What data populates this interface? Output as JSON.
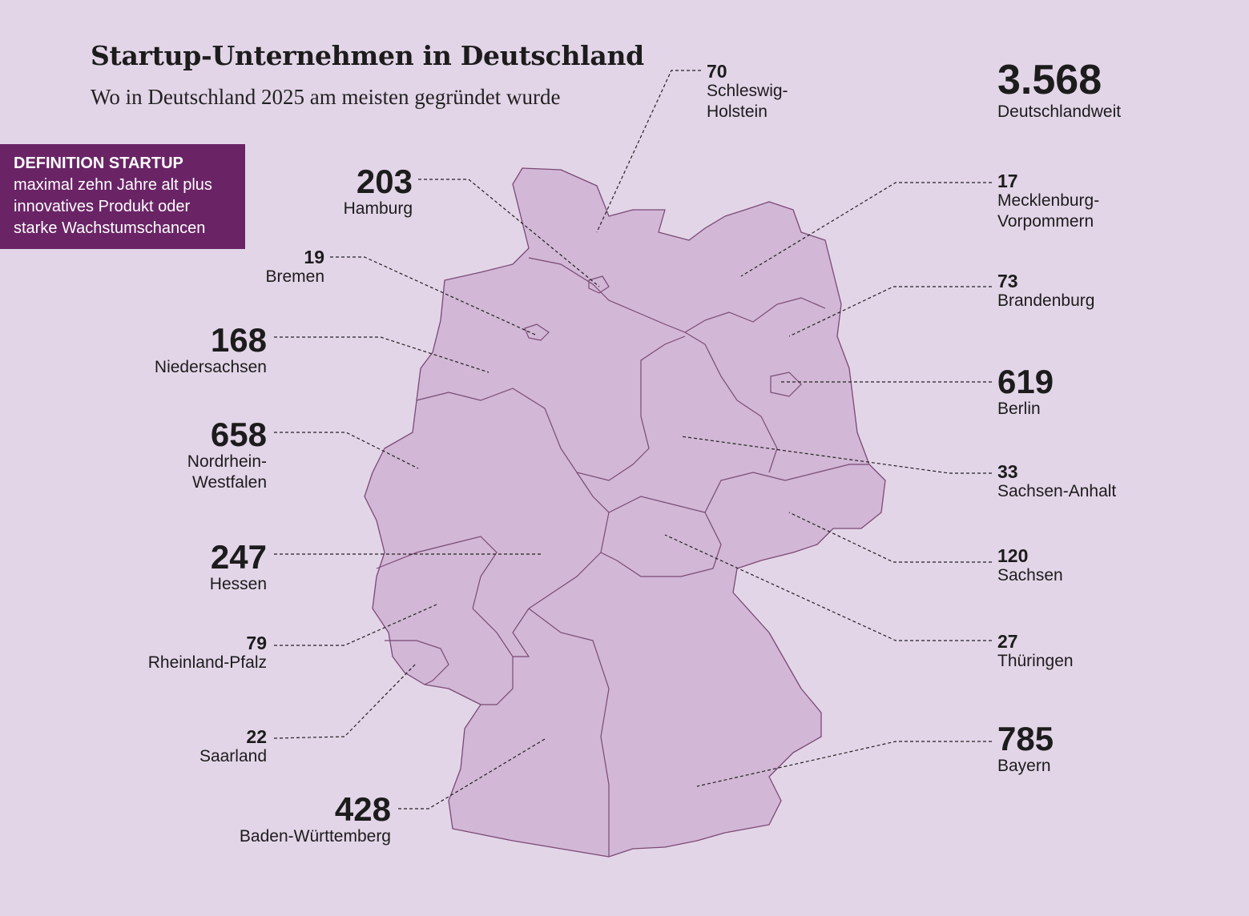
{
  "title": "Startup-Unternehmen in Deutschland",
  "subtitle": "Wo in Deutschland 2025 am meisten gegründet wurde",
  "total": {
    "value": "3.568",
    "label": "Deutschlandweit"
  },
  "definition": {
    "heading": "DEFINITION STARTUP",
    "lines": [
      "maximal zehn Jahre alt plus",
      "innovatives Produkt oder",
      "starke Wachstumschancen"
    ]
  },
  "colors": {
    "background": "#e3d5e8",
    "land": "#d2b7d6",
    "border": "#7a4a76",
    "box": "#6a2466"
  },
  "states": [
    {
      "value": "70",
      "name": "Schleswig-\nHolstein"
    },
    {
      "value": "203",
      "name": "Hamburg"
    },
    {
      "value": "19",
      "name": "Bremen"
    },
    {
      "value": "168",
      "name": "Niedersachsen"
    },
    {
      "value": "658",
      "name": "Nordrhein-\nWestfalen"
    },
    {
      "value": "247",
      "name": "Hessen"
    },
    {
      "value": "79",
      "name": "Rheinland-Pfalz"
    },
    {
      "value": "22",
      "name": "Saarland"
    },
    {
      "value": "428",
      "name": "Baden-Württemberg"
    },
    {
      "value": "17",
      "name": "Mecklenburg-\nVorpommern"
    },
    {
      "value": "73",
      "name": "Brandenburg"
    },
    {
      "value": "619",
      "name": "Berlin"
    },
    {
      "value": "33",
      "name": "Sachsen-Anhalt"
    },
    {
      "value": "120",
      "name": "Sachsen"
    },
    {
      "value": "27",
      "name": "Thüringen"
    },
    {
      "value": "785",
      "name": "Bayern"
    }
  ]
}
